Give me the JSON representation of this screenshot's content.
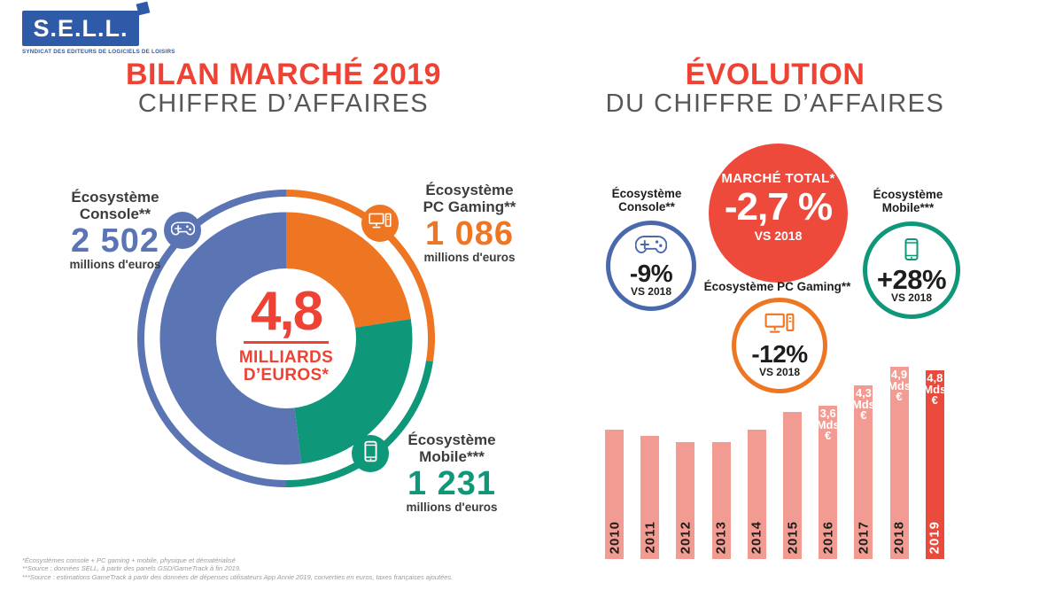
{
  "logo": {
    "name": "S.E.L.L.",
    "tagline": "SYNDICAT DES EDITEURS DE LOGICIELS DE LOISIRS"
  },
  "left": {
    "title": "BILAN MARCHÉ 2019",
    "subtitle": "CHIFFRE D’AFFAIRES",
    "center": {
      "value": "4,8",
      "unit_line1": "MILLIARDS",
      "unit_line2": "D’EUROS*"
    },
    "segments": [
      {
        "id": "console",
        "label_line1": "Écosystème",
        "label_line2": "Console**",
        "value": "2 502",
        "unit": "millions d'euros",
        "color": "#5B74B4",
        "icon": "gamepad-icon"
      },
      {
        "id": "pc-gaming",
        "label_line1": "Écosystème",
        "label_line2": "PC Gaming**",
        "value": "1 086",
        "unit": "millions d'euros",
        "color": "#EE7623",
        "icon": "desktop-pc-icon"
      },
      {
        "id": "mobile",
        "label_line1": "Écosystème",
        "label_line2": "Mobile***",
        "value": "1 231",
        "unit": "millions d'euros",
        "color": "#0E9778",
        "icon": "smartphone-icon"
      }
    ]
  },
  "right": {
    "title": "ÉVOLUTION",
    "subtitle": "DU CHIFFRE D’AFFAIRES",
    "total": {
      "label": "MARCHÉ TOTAL*",
      "value": "-2,7 %",
      "vs": "VS 2018",
      "color": "#EE4A3C"
    },
    "badges": [
      {
        "id": "console",
        "label_line1": "Écosystème",
        "label_line2": "Console**",
        "value": "-9%",
        "vs": "VS 2018",
        "color": "#4A69AD",
        "icon": "gamepad-icon"
      },
      {
        "id": "pc-gaming",
        "label_line1": "Écosystème PC Gaming**",
        "label_line2": "",
        "value": "-12%",
        "vs": "VS 2018",
        "color": "#EE7623",
        "icon": "desktop-pc-icon"
      },
      {
        "id": "mobile",
        "label_line1": "Écosystème",
        "label_line2": "Mobile***",
        "value": "+28%",
        "vs": "VS 2018",
        "color": "#0E9778",
        "icon": "smartphone-icon"
      }
    ]
  },
  "chart_data": [
    {
      "type": "pie",
      "donut": true,
      "title": "Bilan marché 2019 — Chiffre d'affaires",
      "total_label": "4,8 milliards d'euros*",
      "unit": "millions d'euros",
      "start_angle_deg": 0,
      "segments": [
        {
          "name": "Écosystème PC Gaming**",
          "value": 1086,
          "color": "#EE7623"
        },
        {
          "name": "Écosystème Mobile***",
          "value": 1231,
          "color": "#0E9778"
        },
        {
          "name": "Écosystème Console**",
          "value": 2502,
          "color": "#5B74B4"
        }
      ]
    },
    {
      "type": "bar",
      "title": "Évolution du chiffre d'affaires",
      "categories": [
        "2010",
        "2011",
        "2012",
        "2013",
        "2014",
        "2015",
        "2016",
        "2017",
        "2018",
        "2019"
      ],
      "values": [
        2.8,
        2.6,
        2.4,
        2.4,
        2.8,
        3.4,
        3.6,
        4.3,
        4.9,
        4.8
      ],
      "unit": "Mds €",
      "bar_labels": [
        null,
        null,
        null,
        null,
        null,
        null,
        "3,6",
        "4,3",
        "4,9",
        "4,8"
      ],
      "unit_lines": [
        "Mds",
        "€"
      ],
      "highlight_index": 9,
      "colors": {
        "bar": "#F29B93",
        "highlight": "#E94A3B"
      },
      "xlabel": "",
      "ylabel": "",
      "grid": false,
      "legend": "none"
    }
  ],
  "footnotes": [
    "*Écosystèmes console + PC gaming + mobile, physique et dématérialisé",
    "**Source : données SELL, à partir des panels GSD/GameTrack à fin 2019.",
    "***Source : estimations GameTrack à partir des données de dépenses utilisateurs App Annie 2019, converties en euros, taxes françaises ajoutées."
  ],
  "colors": {
    "red": "#EE4334",
    "coral_circle": "#EE4A3C",
    "blue": "#5B74B4",
    "badge_blue": "#4A69AD",
    "logo_blue": "#2F5AA7",
    "orange": "#EE7623",
    "green": "#0E9778",
    "dark_text": "#3C3C3B",
    "subtitle_gray": "#575756",
    "footnote_gray": "#9B9B9B",
    "bar_light": "#F29B93",
    "bar_highlight": "#E94A3B"
  }
}
